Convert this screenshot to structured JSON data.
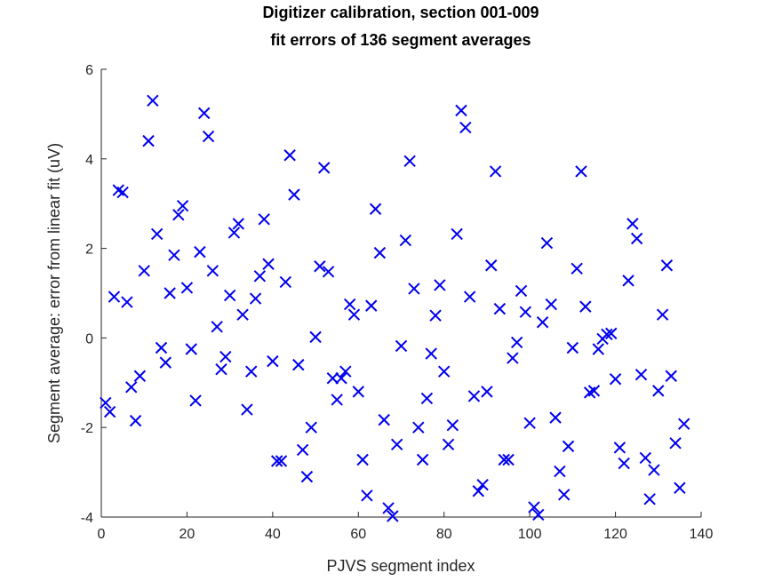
{
  "chart_data": {
    "type": "scatter",
    "title": "Digitizer calibration, section 001-009",
    "subtitle": "fit errors of 136 segment averages",
    "xlabel": "PJVS segment index",
    "ylabel": "Segment average: error from linear fit (uV)",
    "xlim": [
      0,
      140
    ],
    "ylim": [
      -4,
      6
    ],
    "xticks": [
      0,
      20,
      40,
      60,
      80,
      100,
      120,
      140
    ],
    "yticks": [
      -4,
      -2,
      0,
      2,
      4,
      6
    ],
    "grid": false,
    "marker": "x",
    "marker_color": "#0000ee",
    "series": [
      {
        "x": [
          1,
          2,
          3,
          4,
          5,
          6,
          7,
          8,
          9,
          10,
          11,
          12,
          13,
          14,
          15,
          16,
          17,
          18,
          19,
          20,
          21,
          22,
          23,
          24,
          25,
          26,
          27,
          28,
          29,
          30,
          31,
          32,
          33,
          34,
          35,
          36,
          37,
          38,
          39,
          40,
          41,
          42,
          43,
          44,
          45,
          46,
          47,
          48,
          49,
          50,
          51,
          52,
          53,
          54,
          55,
          56,
          57,
          58,
          59,
          60,
          61,
          62,
          63,
          64,
          65,
          66,
          67,
          68,
          69,
          70,
          71,
          72,
          73,
          74,
          75,
          76,
          77,
          78,
          79,
          80,
          81,
          82,
          83,
          84,
          85,
          86,
          87,
          88,
          89,
          90,
          91,
          92,
          93,
          94,
          95,
          96,
          97,
          98,
          99,
          100,
          101,
          102,
          103,
          104,
          105,
          106,
          107,
          108,
          109,
          110,
          111,
          112,
          113,
          114,
          115,
          116,
          117,
          118,
          119,
          120,
          121,
          122,
          123,
          124,
          125,
          126,
          127,
          128,
          129,
          130,
          131,
          132,
          133,
          134,
          135,
          136
        ],
        "y": [
          -1.45,
          -1.65,
          0.92,
          3.3,
          3.25,
          0.8,
          -1.1,
          -1.85,
          -0.85,
          1.5,
          4.4,
          5.3,
          2.32,
          -0.22,
          -0.55,
          1.0,
          1.85,
          2.75,
          2.95,
          1.12,
          -0.25,
          -1.4,
          1.92,
          5.02,
          4.5,
          1.5,
          0.25,
          -0.7,
          -0.42,
          0.95,
          2.35,
          2.55,
          0.52,
          -1.6,
          -0.75,
          0.88,
          1.38,
          2.65,
          1.65,
          -0.52,
          -2.75,
          -2.75,
          1.25,
          4.08,
          3.2,
          -0.6,
          -2.5,
          -3.1,
          -2.0,
          0.02,
          1.6,
          3.8,
          1.48,
          -0.9,
          -1.38,
          -0.9,
          -0.75,
          0.75,
          0.52,
          -1.2,
          -2.72,
          -3.52,
          0.72,
          2.88,
          1.9,
          -1.83,
          -3.8,
          -3.98,
          -2.38,
          -0.18,
          2.18,
          3.95,
          1.1,
          -2.0,
          -2.72,
          -1.35,
          -0.35,
          0.5,
          1.18,
          -0.75,
          -2.38,
          -1.95,
          2.32,
          5.08,
          4.7,
          0.92,
          -1.3,
          -3.42,
          -3.28,
          -1.2,
          1.62,
          3.72,
          0.65,
          -2.72,
          -2.72,
          -0.45,
          -0.1,
          1.05,
          0.58,
          -1.9,
          -3.78,
          -3.95,
          0.35,
          2.12,
          0.75,
          -1.78,
          -2.98,
          -3.5,
          -2.42,
          -0.22,
          1.55,
          3.72,
          0.7,
          -1.22,
          -1.18,
          -0.25,
          -0.02,
          0.08,
          0.1,
          -0.92,
          -2.45,
          -2.8,
          1.28,
          2.55,
          2.22,
          -0.82,
          -2.68,
          -3.6,
          -2.95,
          -1.18,
          0.52,
          1.62,
          -0.85,
          -2.35,
          -3.35,
          -1.92
        ]
      }
    ]
  }
}
